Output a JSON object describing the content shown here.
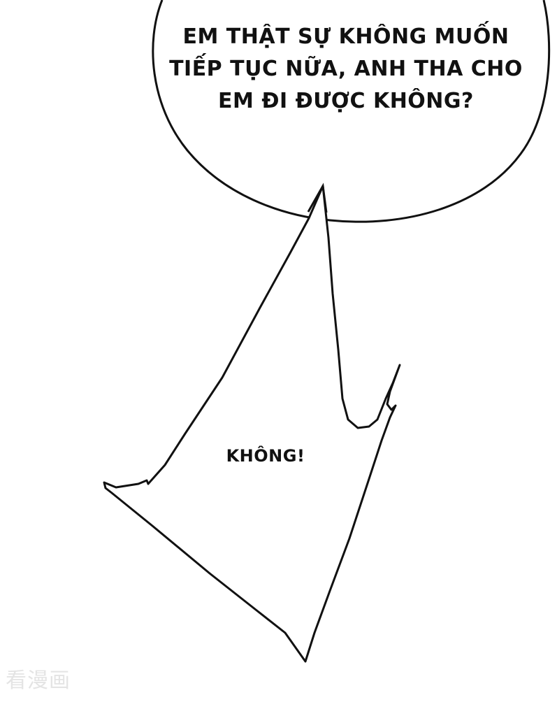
{
  "speech_bubble_top": {
    "lines": [
      "EM THẬT SỰ KHÔNG MUỐN",
      "TIẾP TỤC NỮA, ANH THA CHO",
      "EM ĐI ĐƯỢC KHÔNG?"
    ]
  },
  "speech_bubble_shout": {
    "text": "KHÔNG!"
  },
  "watermark": {
    "text": "看漫画"
  },
  "colors": {
    "background": "#ffffff",
    "outline": "#111111",
    "text": "#111111",
    "watermark": "#e4e4e4"
  }
}
